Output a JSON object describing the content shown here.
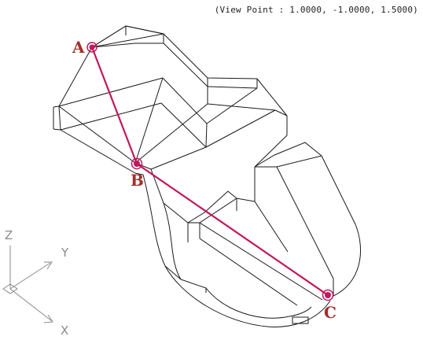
{
  "viewport": {
    "view_point_label": "(View Point : 1.0000, -1.0000, 1.5000)"
  },
  "points": {
    "a": {
      "label": "A"
    },
    "b": {
      "label": "B"
    },
    "c": {
      "label": "C"
    }
  },
  "ucs_icon": {
    "x_label": "X",
    "y_label": "Y",
    "z_label": "Z"
  },
  "colors": {
    "point_marker": "#c2185b",
    "point_label": "#a0302a",
    "wireframe": "#1a1a1a",
    "ucs_icon": "#8a8a8a"
  }
}
